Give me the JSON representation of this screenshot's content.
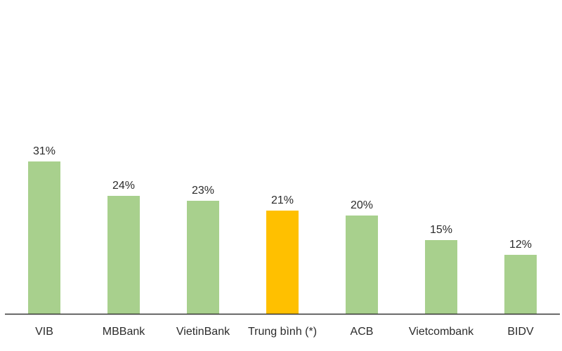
{
  "chart_data": {
    "type": "bar",
    "categories": [
      "VIB",
      "MBBank",
      "VietinBank",
      "Trung bình (*)",
      "ACB",
      "Vietcombank",
      "BIDV"
    ],
    "values": [
      31,
      24,
      23,
      21,
      20,
      15,
      12
    ],
    "value_labels": [
      "31%",
      "24%",
      "23%",
      "21%",
      "20%",
      "15%",
      "12%"
    ],
    "highlight_index": 3,
    "colors": {
      "bar": "#a8d08d",
      "highlight": "#ffc000",
      "axis": "#333333"
    },
    "ylim": [
      0,
      45
    ],
    "grid": false,
    "title": "",
    "xlabel": "",
    "ylabel": ""
  }
}
